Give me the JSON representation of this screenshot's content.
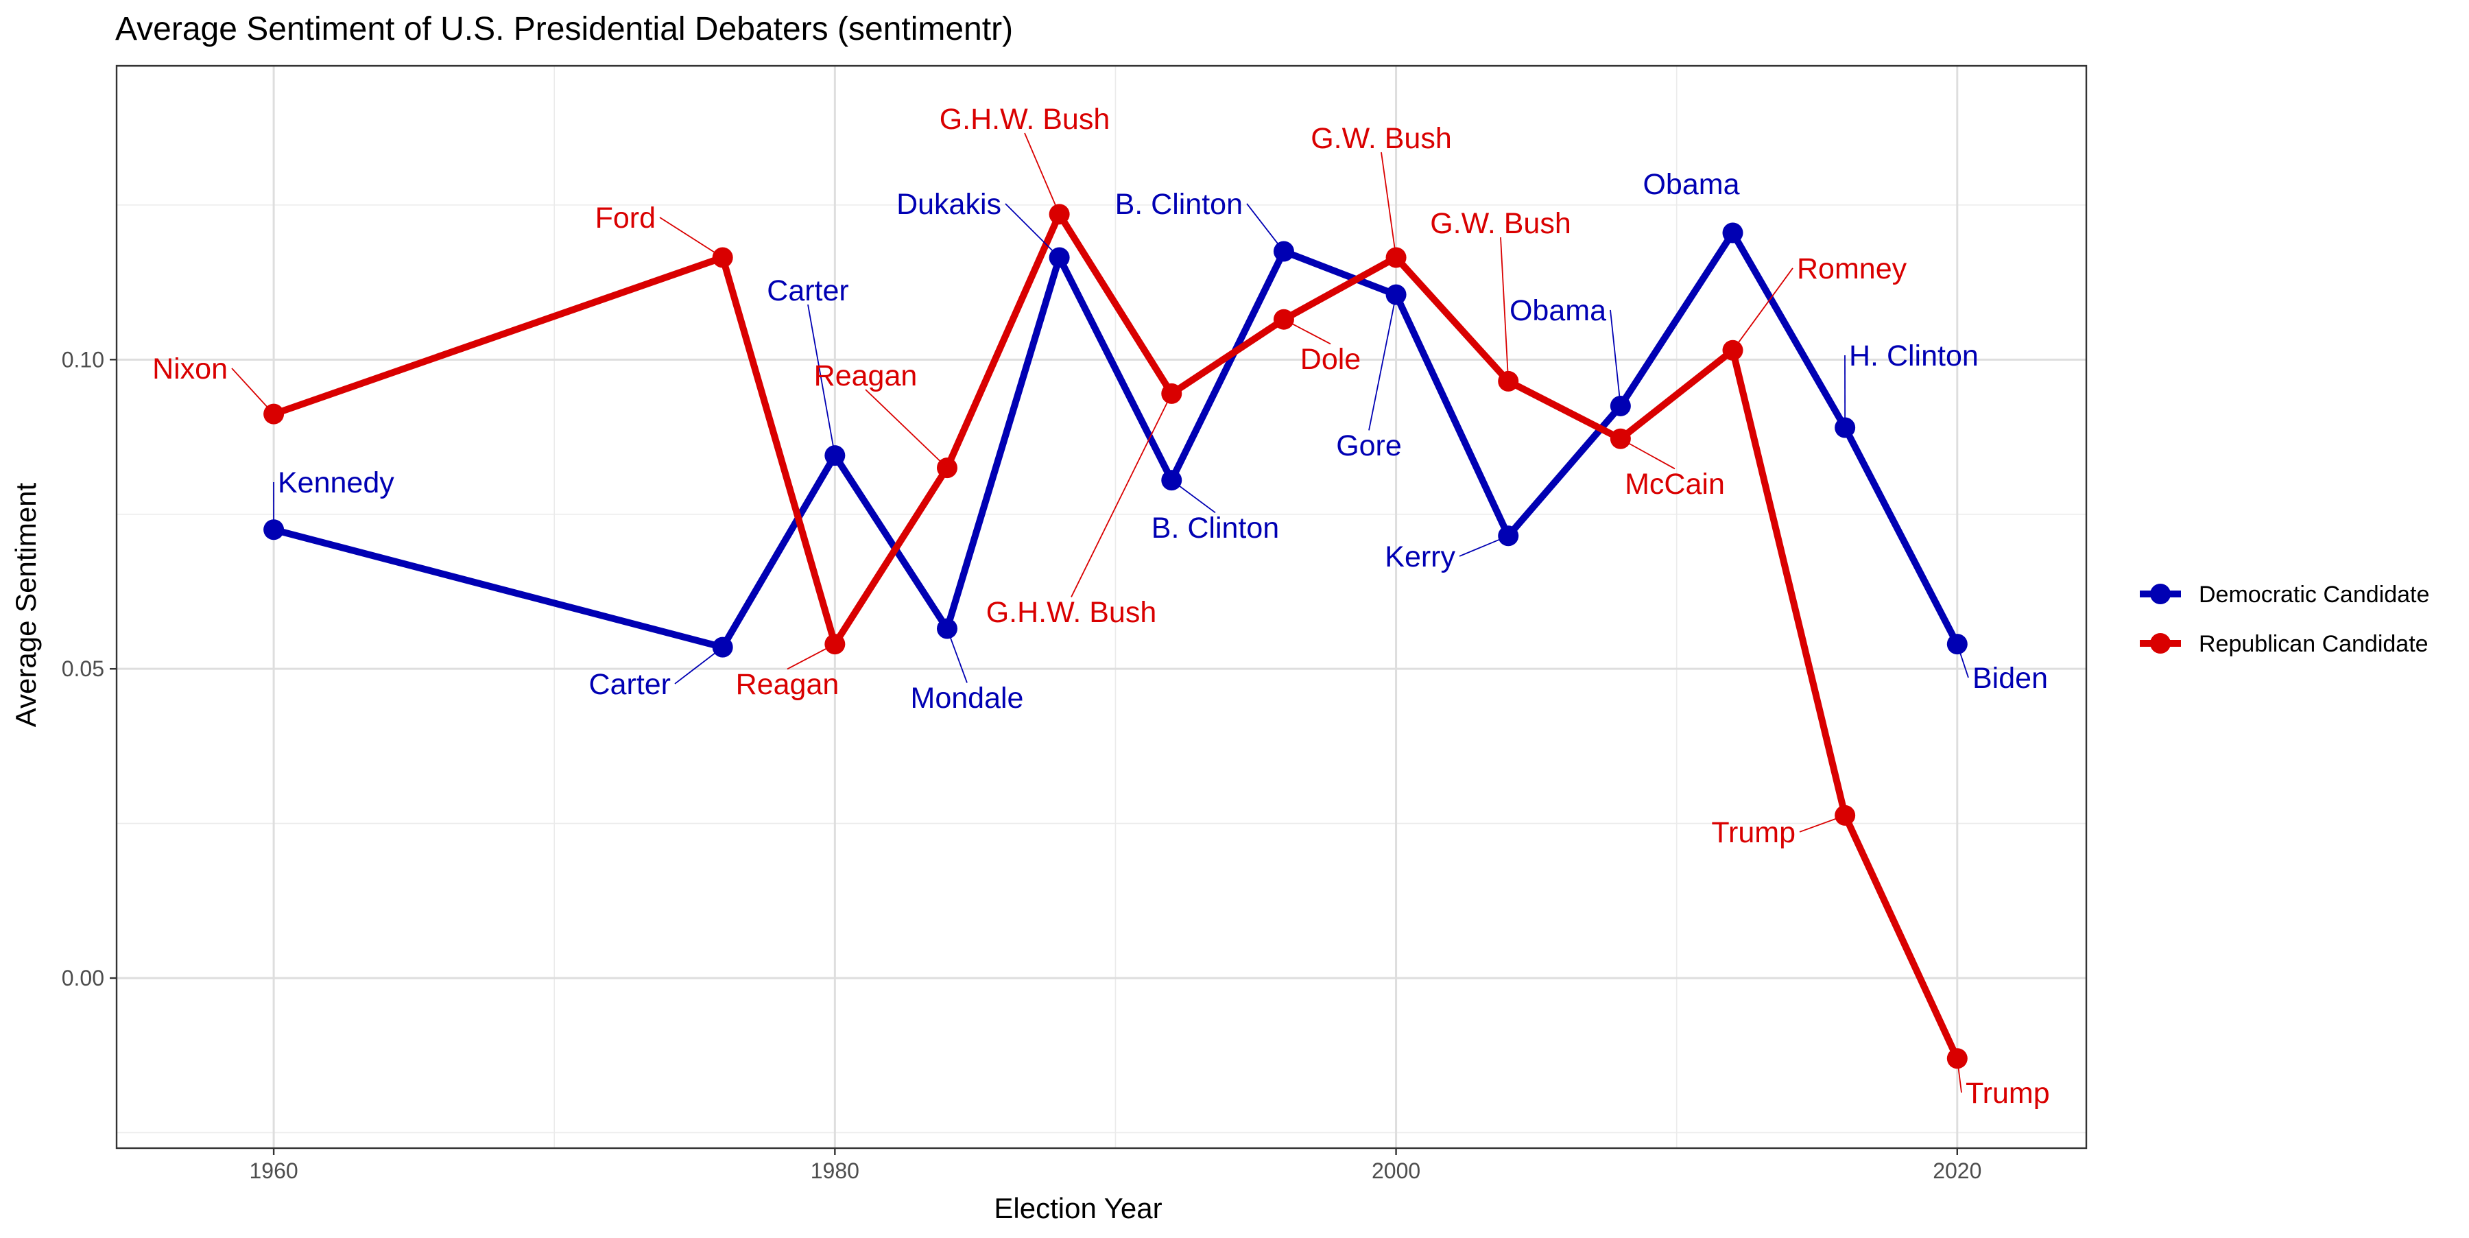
{
  "chart_data": {
    "type": "line",
    "title": "Average Sentiment of U.S. Presidential Debaters (sentimentr)",
    "xlabel": "Election Year",
    "ylabel": "Average Sentiment",
    "xlim": [
      1954.4,
      2024.6
    ],
    "ylim": [
      -0.0275,
      0.1475
    ],
    "x_major_ticks": [
      1960,
      1980,
      2000,
      2020
    ],
    "x_minor_ticks": [
      1970,
      1990,
      2010
    ],
    "x_tick_labels": [
      "1960",
      "1980",
      "2000",
      "2020"
    ],
    "y_major_ticks": [
      0.0,
      0.05,
      0.1
    ],
    "y_minor_ticks": [
      -0.025,
      0.025,
      0.075,
      0.125
    ],
    "y_tick_labels": [
      "0.00",
      "0.05",
      "0.10"
    ],
    "grid": true,
    "legend_position": "right",
    "series": [
      {
        "name": "Democratic Candidate",
        "color": "#0000b3",
        "points": [
          {
            "x": 1960,
            "y": 0.0725,
            "label": "Kennedy"
          },
          {
            "x": 1976,
            "y": 0.0535,
            "label": "Carter"
          },
          {
            "x": 1980,
            "y": 0.0845,
            "label": "Carter"
          },
          {
            "x": 1984,
            "y": 0.0565,
            "label": "Mondale"
          },
          {
            "x": 1988,
            "y": 0.1165,
            "label": "Dukakis"
          },
          {
            "x": 1992,
            "y": 0.0805,
            "label": "B. Clinton"
          },
          {
            "x": 1996,
            "y": 0.1175,
            "label": "B. Clinton"
          },
          {
            "x": 2000,
            "y": 0.1105,
            "label": "Gore"
          },
          {
            "x": 2004,
            "y": 0.0715,
            "label": "Kerry"
          },
          {
            "x": 2008,
            "y": 0.0925,
            "label": "Obama"
          },
          {
            "x": 2012,
            "y": 0.1205,
            "label": "Obama"
          },
          {
            "x": 2016,
            "y": 0.089,
            "label": "H. Clinton"
          },
          {
            "x": 2020,
            "y": 0.054,
            "label": "Biden"
          }
        ]
      },
      {
        "name": "Republican Candidate",
        "color": "#d90000",
        "points": [
          {
            "x": 1960,
            "y": 0.0912,
            "label": "Nixon"
          },
          {
            "x": 1976,
            "y": 0.1165,
            "label": "Ford"
          },
          {
            "x": 1980,
            "y": 0.054,
            "label": "Reagan"
          },
          {
            "x": 1984,
            "y": 0.0825,
            "label": "Reagan"
          },
          {
            "x": 1988,
            "y": 0.1235,
            "label": "G.H.W. Bush"
          },
          {
            "x": 1992,
            "y": 0.0945,
            "label": "G.H.W. Bush"
          },
          {
            "x": 1996,
            "y": 0.1065,
            "label": "Dole"
          },
          {
            "x": 2000,
            "y": 0.1165,
            "label": "G.W. Bush"
          },
          {
            "x": 2004,
            "y": 0.0965,
            "label": "G.W. Bush"
          },
          {
            "x": 2008,
            "y": 0.0872,
            "label": "McCain"
          },
          {
            "x": 2012,
            "y": 0.1015,
            "label": "Romney"
          },
          {
            "x": 2016,
            "y": 0.0263,
            "label": "Trump"
          },
          {
            "x": 2020,
            "y": -0.013,
            "label": "Trump"
          }
        ]
      }
    ]
  }
}
